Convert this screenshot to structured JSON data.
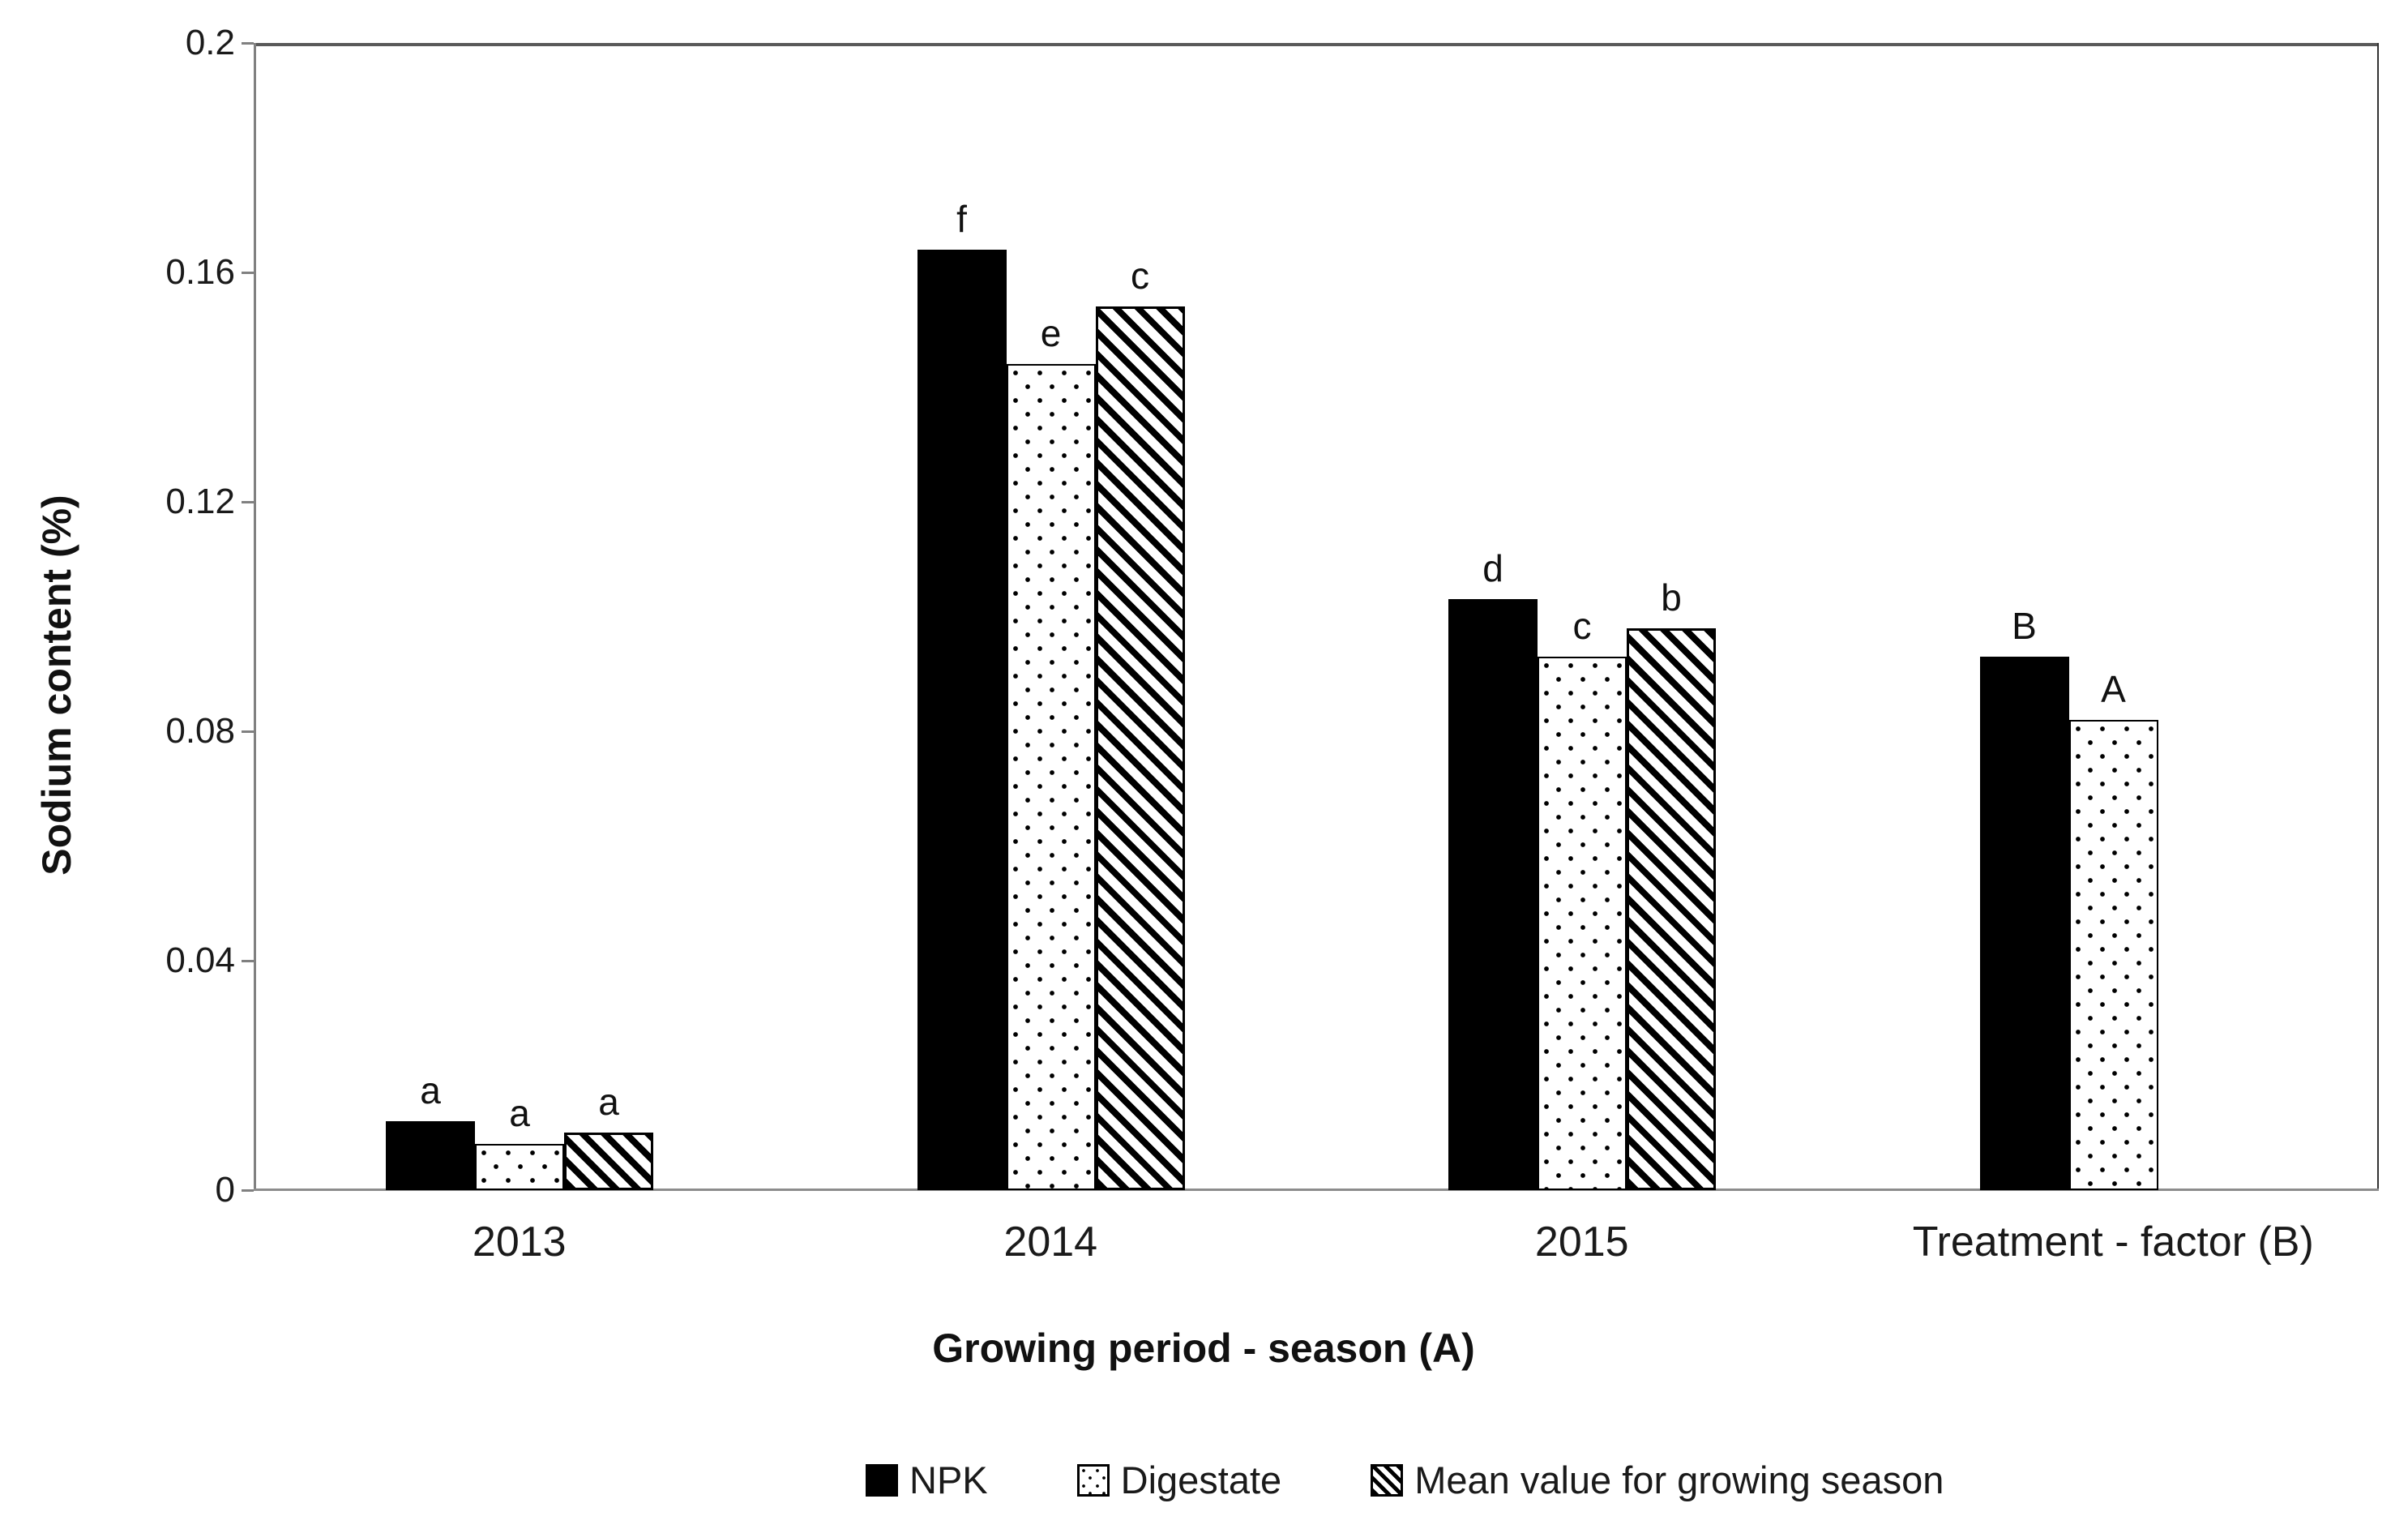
{
  "chart_data": {
    "type": "bar",
    "title": "",
    "xlabel": "Growing period - season (A)",
    "ylabel": "Sodium content (%)",
    "categories": [
      "2013",
      "2014",
      "2015",
      "Treatment - factor (B)"
    ],
    "series": [
      {
        "name": "NPK",
        "pattern": "solid",
        "values": [
          0.012,
          0.164,
          0.103,
          0.093
        ],
        "significance_letters": [
          "a",
          "f",
          "d",
          "B"
        ]
      },
      {
        "name": "Digestate",
        "pattern": "dots",
        "values": [
          0.008,
          0.144,
          0.093,
          0.082
        ],
        "significance_letters": [
          "a",
          "e",
          "c",
          "A"
        ]
      },
      {
        "name": "Mean value for growing season",
        "pattern": "hatch",
        "values": [
          0.01,
          0.154,
          0.098,
          null
        ],
        "significance_letters": [
          "a",
          "c",
          "b",
          null
        ]
      }
    ],
    "ylim": [
      0,
      0.2
    ],
    "yticks": [
      0,
      0.04,
      0.08,
      0.12,
      0.16,
      0.2
    ],
    "ytick_labels": [
      "0",
      "0.04",
      "0.08",
      "0.12",
      "0.16",
      "0.2"
    ],
    "legend_position": "bottom",
    "grid": false
  },
  "colors": {
    "bar_fill": "#000000",
    "axis_line": "#808080",
    "frame_top": "#595959",
    "text": "#1a1a1a",
    "background": "#ffffff"
  }
}
